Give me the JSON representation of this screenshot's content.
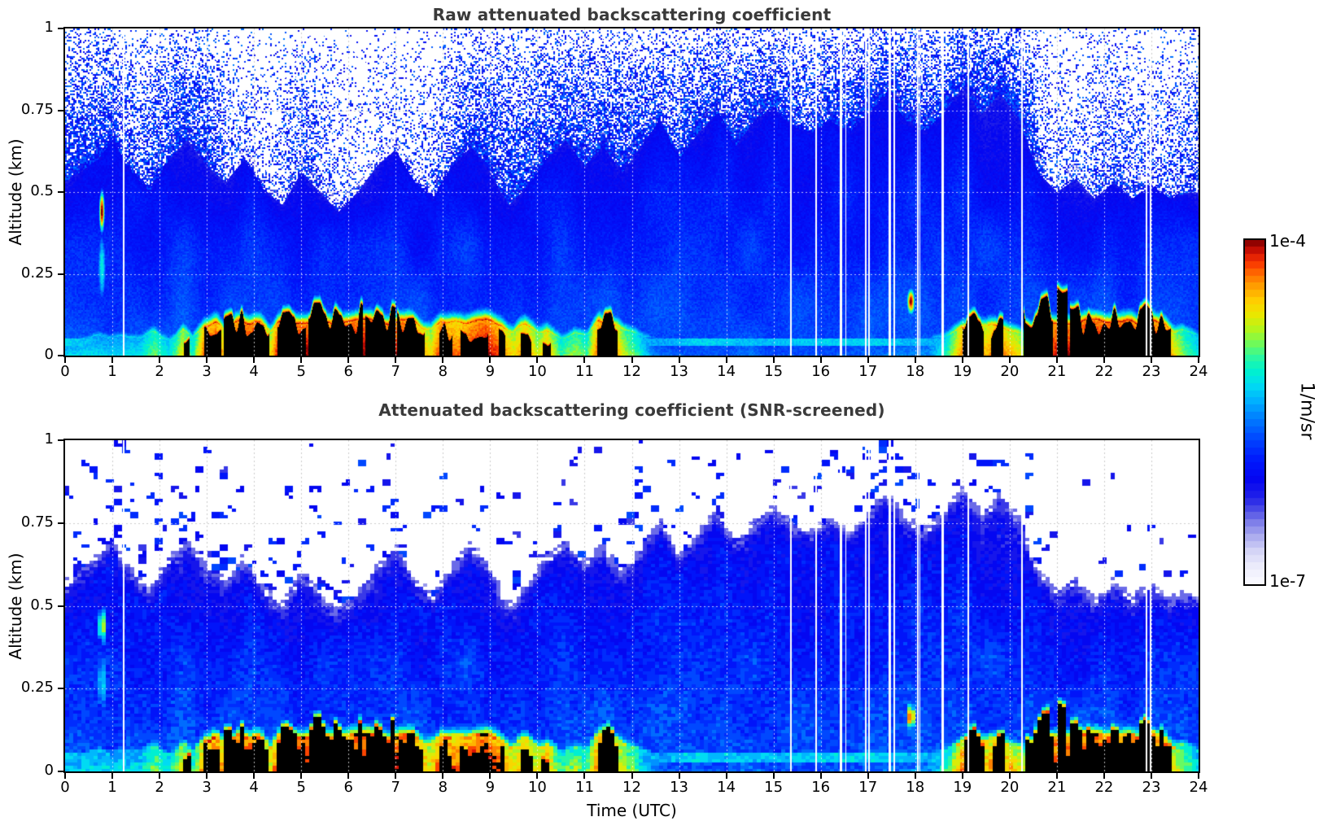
{
  "figure": {
    "background": "#ffffff",
    "title_color": "#3a3a3a",
    "axis_color": "#000000",
    "grid_style": "dotted"
  },
  "colorbar": {
    "label": "1/m/sr",
    "max_label": "1e-4",
    "min_label": "1e-7",
    "scale": "log",
    "n_segments": 48,
    "stops": [
      [
        0.0,
        "#fbfbff"
      ],
      [
        0.05,
        "#ececfb"
      ],
      [
        0.09,
        "#d7d7f7"
      ],
      [
        0.13,
        "#b4b4f0"
      ],
      [
        0.17,
        "#8888ea"
      ],
      [
        0.21,
        "#5353e6"
      ],
      [
        0.25,
        "#2222e8"
      ],
      [
        0.3,
        "#0505f0"
      ],
      [
        0.36,
        "#0018fc"
      ],
      [
        0.42,
        "#0046ff"
      ],
      [
        0.48,
        "#007cff"
      ],
      [
        0.53,
        "#00b0ff"
      ],
      [
        0.58,
        "#00ddf2"
      ],
      [
        0.62,
        "#00f2cc"
      ],
      [
        0.66,
        "#2ef89e"
      ],
      [
        0.7,
        "#73fa55"
      ],
      [
        0.74,
        "#b5f51b"
      ],
      [
        0.78,
        "#e8e800"
      ],
      [
        0.82,
        "#ffd000"
      ],
      [
        0.86,
        "#ffa300"
      ],
      [
        0.9,
        "#ff6d00"
      ],
      [
        0.93,
        "#fa3a00"
      ],
      [
        0.96,
        "#d91505"
      ],
      [
        0.98,
        "#a90400"
      ],
      [
        1.0,
        "#790000"
      ]
    ]
  },
  "chart_data": [
    {
      "type": "heatmap",
      "panel": "raw",
      "title": "Raw attenuated backscattering coefficient",
      "xlabel": "Time (UTC)",
      "ylabel": "Altitude (km)",
      "x_range": [
        0,
        24
      ],
      "y_range": [
        0,
        1
      ],
      "x_ticks": [
        0,
        1,
        2,
        3,
        4,
        5,
        6,
        7,
        8,
        9,
        10,
        11,
        12,
        13,
        14,
        15,
        16,
        17,
        18,
        19,
        20,
        21,
        22,
        23,
        24
      ],
      "y_ticks": [
        0,
        0.25,
        0.5,
        0.75,
        1
      ],
      "value_min": "1e-7",
      "value_max": "1e-4",
      "units": "1/m/sr",
      "grid": true,
      "noise_speckle_density": [
        [
          0,
          0.85
        ],
        [
          1,
          0.8
        ],
        [
          1.5,
          0.55
        ],
        [
          2,
          0.75
        ],
        [
          3,
          0.8
        ],
        [
          3.6,
          0.3
        ],
        [
          4.3,
          0.25
        ],
        [
          5,
          0.55
        ],
        [
          5.6,
          0.35
        ],
        [
          6.3,
          0.2
        ],
        [
          7,
          0.25
        ],
        [
          7.6,
          0.3
        ],
        [
          8.3,
          0.6
        ],
        [
          9,
          0.8
        ],
        [
          10,
          0.75
        ],
        [
          11,
          0.8
        ],
        [
          12,
          0.85
        ],
        [
          12.7,
          0.6
        ],
        [
          13.4,
          0.8
        ],
        [
          14,
          0.75
        ],
        [
          15,
          0.8
        ],
        [
          15.7,
          0.6
        ],
        [
          16.3,
          0.8
        ],
        [
          17,
          0.85
        ],
        [
          18,
          0.8
        ],
        [
          19,
          0.85
        ],
        [
          20,
          0.9
        ],
        [
          20.5,
          0.8
        ],
        [
          20.8,
          0.3
        ],
        [
          21.5,
          0.35
        ],
        [
          22,
          0.5
        ],
        [
          22.6,
          0.45
        ],
        [
          23,
          0.35
        ],
        [
          23.6,
          0.5
        ],
        [
          24,
          0.55
        ]
      ]
    },
    {
      "type": "heatmap",
      "panel": "snr_screened",
      "title": "Attenuated backscattering coefficient (SNR-screened)",
      "xlabel": "Time (UTC)",
      "ylabel": "Altitude (km)",
      "x_range": [
        0,
        24
      ],
      "y_range": [
        0,
        1
      ],
      "x_ticks": [
        0,
        1,
        2,
        3,
        4,
        5,
        6,
        7,
        8,
        9,
        10,
        11,
        12,
        13,
        14,
        15,
        16,
        17,
        18,
        19,
        20,
        21,
        22,
        23,
        24
      ],
      "y_ticks": [
        0,
        0.25,
        0.5,
        0.75,
        1
      ],
      "value_min": "1e-7",
      "value_max": "1e-4",
      "units": "1/m/sr",
      "grid": true,
      "screened_out_color": "#ffffff",
      "saturated_color": "#000000",
      "noise_speckle_density": [
        [
          0,
          0.5
        ],
        [
          0.5,
          0.3
        ],
        [
          1,
          0.6
        ],
        [
          1.5,
          0.7
        ],
        [
          2,
          0.75
        ],
        [
          2.5,
          0.6
        ],
        [
          3,
          0.55
        ],
        [
          3.5,
          0.45
        ],
        [
          4,
          0.35
        ],
        [
          4.5,
          0.3
        ],
        [
          5,
          0.35
        ],
        [
          5.5,
          0.3
        ],
        [
          6,
          0.45
        ],
        [
          6.5,
          0.3
        ],
        [
          7,
          0.2
        ],
        [
          7.5,
          0.15
        ],
        [
          8,
          0.2
        ],
        [
          8.5,
          0.25
        ],
        [
          9,
          0.15
        ],
        [
          9.7,
          0.3
        ],
        [
          10.3,
          0.3
        ],
        [
          11,
          0.2
        ],
        [
          11.6,
          0.35
        ],
        [
          12,
          0.3
        ],
        [
          12.5,
          0.15
        ],
        [
          13,
          0.2
        ],
        [
          13.6,
          0.3
        ],
        [
          14.2,
          0.25
        ],
        [
          15,
          0.3
        ],
        [
          15.6,
          0.35
        ],
        [
          16.2,
          0.3
        ],
        [
          16.8,
          0.4
        ],
        [
          17.4,
          0.45
        ],
        [
          18,
          0.4
        ],
        [
          18.7,
          0.35
        ],
        [
          19.3,
          0.4
        ],
        [
          20,
          0.3
        ],
        [
          20.6,
          0.25
        ],
        [
          21.2,
          0.15
        ],
        [
          22,
          0.1
        ],
        [
          22.7,
          0.12
        ],
        [
          23.4,
          0.1
        ],
        [
          24,
          0.1
        ]
      ]
    }
  ],
  "features": {
    "boundary_layer_top_km": [
      [
        0,
        0.55
      ],
      [
        0.7,
        0.62
      ],
      [
        1,
        0.68
      ],
      [
        1.3,
        0.6
      ],
      [
        1.8,
        0.52
      ],
      [
        2.2,
        0.62
      ],
      [
        2.6,
        0.68
      ],
      [
        3,
        0.6
      ],
      [
        3.4,
        0.55
      ],
      [
        3.8,
        0.62
      ],
      [
        4.2,
        0.53
      ],
      [
        4.6,
        0.48
      ],
      [
        5,
        0.58
      ],
      [
        5.4,
        0.52
      ],
      [
        5.8,
        0.46
      ],
      [
        6.2,
        0.52
      ],
      [
        6.6,
        0.6
      ],
      [
        7,
        0.65
      ],
      [
        7.4,
        0.55
      ],
      [
        7.8,
        0.5
      ],
      [
        8.2,
        0.6
      ],
      [
        8.6,
        0.66
      ],
      [
        9,
        0.58
      ],
      [
        9.4,
        0.48
      ],
      [
        9.8,
        0.54
      ],
      [
        10.2,
        0.62
      ],
      [
        10.6,
        0.68
      ],
      [
        11,
        0.6
      ],
      [
        11.4,
        0.66
      ],
      [
        11.8,
        0.58
      ],
      [
        12.2,
        0.66
      ],
      [
        12.6,
        0.74
      ],
      [
        13,
        0.62
      ],
      [
        13.4,
        0.7
      ],
      [
        13.8,
        0.76
      ],
      [
        14.2,
        0.66
      ],
      [
        14.6,
        0.74
      ],
      [
        15,
        0.78
      ],
      [
        15.4,
        0.72
      ],
      [
        15.8,
        0.7
      ],
      [
        16.2,
        0.74
      ],
      [
        16.6,
        0.7
      ],
      [
        17,
        0.76
      ],
      [
        17.4,
        0.82
      ],
      [
        17.8,
        0.74
      ],
      [
        18.2,
        0.7
      ],
      [
        18.6,
        0.76
      ],
      [
        19,
        0.84
      ],
      [
        19.4,
        0.76
      ],
      [
        19.8,
        0.82
      ],
      [
        20.2,
        0.74
      ],
      [
        20.6,
        0.58
      ],
      [
        21,
        0.52
      ],
      [
        21.4,
        0.56
      ],
      [
        21.8,
        0.5
      ],
      [
        22.2,
        0.55
      ],
      [
        22.6,
        0.5
      ],
      [
        23,
        0.54
      ],
      [
        23.4,
        0.5
      ],
      [
        23.8,
        0.52
      ],
      [
        24,
        0.52
      ]
    ],
    "surface_log10_backscatter": [
      [
        0,
        -5.3
      ],
      [
        0.5,
        -5.25
      ],
      [
        1,
        -5.3
      ],
      [
        1.6,
        -5.2
      ],
      [
        1.9,
        -4.9
      ],
      [
        2.2,
        -5.2
      ],
      [
        2.5,
        -4.6
      ],
      [
        2.7,
        -5.1
      ],
      [
        2.95,
        -4.2
      ],
      [
        3.2,
        -4.1
      ],
      [
        3.45,
        -4.7
      ],
      [
        3.6,
        -4.05
      ],
      [
        4,
        -4
      ],
      [
        4.35,
        -4.6
      ],
      [
        4.5,
        -4.1
      ],
      [
        4.8,
        -4
      ],
      [
        5.3,
        -4
      ],
      [
        5.8,
        -4.05
      ],
      [
        6.3,
        -4
      ],
      [
        6.8,
        -4
      ],
      [
        7.3,
        -4.05
      ],
      [
        7.75,
        -4.6
      ],
      [
        7.95,
        -4.1
      ],
      [
        8.3,
        -4.3
      ],
      [
        8.6,
        -4.1
      ],
      [
        8.9,
        -4
      ],
      [
        9.2,
        -4.2
      ],
      [
        9.5,
        -4.6
      ],
      [
        9.75,
        -4.3
      ],
      [
        10,
        -4.7
      ],
      [
        10.2,
        -4.4
      ],
      [
        10.5,
        -5
      ],
      [
        10.8,
        -4.8
      ],
      [
        11.05,
        -5
      ],
      [
        11.3,
        -4.15
      ],
      [
        11.55,
        -4.05
      ],
      [
        11.8,
        -4.7
      ],
      [
        12.1,
        -5
      ],
      [
        12.5,
        -5.6
      ],
      [
        13,
        -5.65
      ],
      [
        14,
        -5.7
      ],
      [
        15,
        -5.7
      ],
      [
        16,
        -5.7
      ],
      [
        17,
        -5.65
      ],
      [
        17.6,
        -5.55
      ],
      [
        18.3,
        -5.5
      ],
      [
        18.7,
        -5
      ],
      [
        19,
        -4.3
      ],
      [
        19.25,
        -4.15
      ],
      [
        19.5,
        -4.5
      ],
      [
        19.7,
        -4.25
      ],
      [
        19.95,
        -4.4
      ],
      [
        20.2,
        -4.6
      ],
      [
        20.45,
        -5.1
      ],
      [
        20.6,
        -4.3
      ],
      [
        20.9,
        -4.1
      ],
      [
        21.2,
        -4.05
      ],
      [
        21.6,
        -4
      ],
      [
        22,
        -4
      ],
      [
        22.5,
        -4
      ],
      [
        23,
        -4.05
      ],
      [
        23.3,
        -4.15
      ],
      [
        23.5,
        -4.6
      ],
      [
        23.7,
        -4.9
      ],
      [
        24,
        -5.2
      ]
    ],
    "cloud_saturated_intervals_utc": [
      [
        2.52,
        2.64,
        0.06
      ],
      [
        2.95,
        3.3,
        0.08
      ],
      [
        3.36,
        4.32,
        0.1
      ],
      [
        4.5,
        5.1,
        0.1
      ],
      [
        5.15,
        6.3,
        0.12
      ],
      [
        6.35,
        7,
        0.11
      ],
      [
        7.03,
        7.62,
        0.1
      ],
      [
        7.93,
        8.2,
        0.08
      ],
      [
        8.38,
        8.96,
        0.07
      ],
      [
        9.18,
        9.32,
        0.06
      ],
      [
        9.65,
        9.88,
        0.06
      ],
      [
        10.12,
        10.28,
        0.05
      ],
      [
        11.26,
        11.7,
        0.1
      ],
      [
        19,
        19.45,
        0.09
      ],
      [
        19.6,
        19.87,
        0.08
      ],
      [
        20.3,
        20.92,
        0.13
      ],
      [
        21,
        21.22,
        0.15
      ],
      [
        21.28,
        23.42,
        0.11
      ]
    ],
    "elevated_plume": {
      "time_utc": 0.78,
      "alt_km": 0.44,
      "sigma_t": 0.045,
      "sigma_z": 0.05,
      "amplitude": 1.04
    },
    "aerosol_blob": {
      "time_utc": 17.91,
      "alt_km": 0.165,
      "sigma_t": 0.07,
      "sigma_z": 0.033,
      "amplitude": 1.0
    },
    "instrument_artifact_band_km": [
      0.03,
      0.052
    ],
    "data_gaps_utc": [
      [
        1.24,
        0.04
      ],
      [
        15.37,
        0.035
      ],
      [
        15.9,
        0.03
      ],
      [
        16.43,
        0.05
      ],
      [
        16.53,
        0.03
      ],
      [
        16.95,
        0.035
      ],
      [
        17.02,
        0.03
      ],
      [
        17.46,
        0.05
      ],
      [
        17.55,
        0.03
      ],
      [
        18.06,
        0.035
      ],
      [
        18.1,
        0.03
      ],
      [
        18.58,
        0.04
      ],
      [
        19.13,
        0.03
      ],
      [
        20.26,
        0.035
      ],
      [
        22.9,
        0.04
      ],
      [
        22.98,
        0.03
      ]
    ]
  }
}
